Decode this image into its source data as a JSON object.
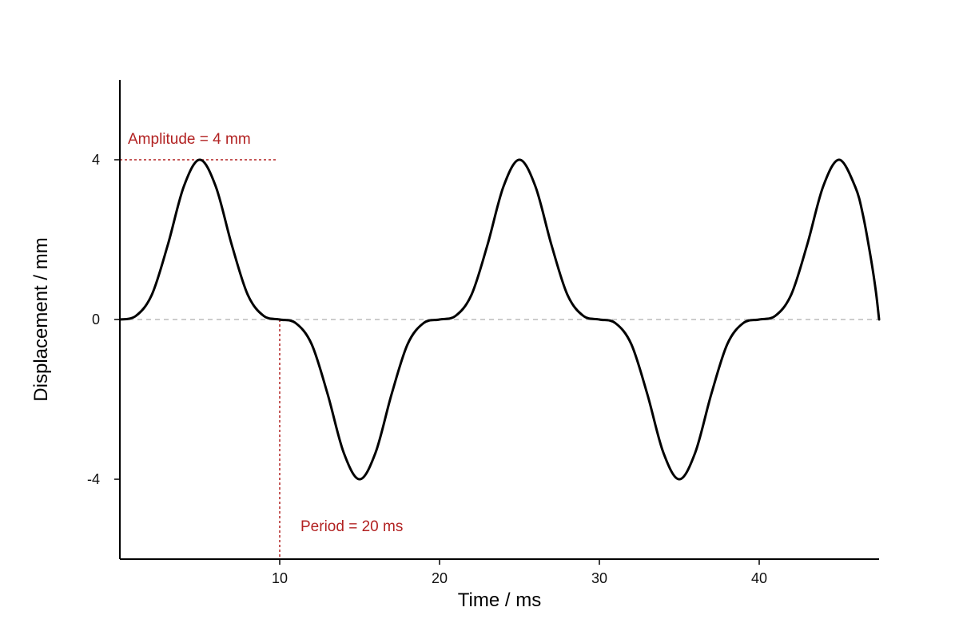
{
  "chart_data": {
    "type": "line",
    "title": "",
    "xlabel": "Time / ms",
    "ylabel": "Displacement / mm",
    "xlim": [
      0,
      47.5
    ],
    "ylim": [
      -6,
      6
    ],
    "x_ticks": [
      10,
      20,
      30,
      40
    ],
    "x_tick_labels": [
      "10",
      "20",
      "30",
      "40"
    ],
    "y_ticks": [
      -4,
      0,
      4
    ],
    "y_tick_labels": [
      "-4",
      "0",
      "4"
    ],
    "grid": false,
    "legend": "none",
    "series": [
      {
        "points": [
          [
            0,
            0
          ],
          [
            1,
            0.09
          ],
          [
            2,
            0.62
          ],
          [
            3,
            1.87
          ],
          [
            4,
            3.33
          ],
          [
            5,
            4.0
          ],
          [
            6,
            3.33
          ],
          [
            7,
            1.87
          ],
          [
            8,
            0.62
          ],
          [
            9,
            0.09
          ],
          [
            10,
            0
          ],
          [
            11,
            -0.09
          ],
          [
            12,
            -0.62
          ],
          [
            13,
            -1.87
          ],
          [
            14,
            -3.33
          ],
          [
            15,
            -4.0
          ],
          [
            16,
            -3.33
          ],
          [
            17,
            -1.87
          ],
          [
            18,
            -0.62
          ],
          [
            19,
            -0.09
          ],
          [
            20,
            0
          ],
          [
            21,
            0.09
          ],
          [
            22,
            0.62
          ],
          [
            23,
            1.87
          ],
          [
            24,
            3.33
          ],
          [
            25,
            4.0
          ],
          [
            26,
            3.33
          ],
          [
            27,
            1.87
          ],
          [
            28,
            0.62
          ],
          [
            29,
            0.09
          ],
          [
            30,
            0
          ],
          [
            31,
            -0.09
          ],
          [
            32,
            -0.62
          ],
          [
            33,
            -1.87
          ],
          [
            34,
            -3.33
          ],
          [
            35,
            -4.0
          ],
          [
            36,
            -3.33
          ],
          [
            37,
            -1.87
          ],
          [
            38,
            -0.62
          ],
          [
            39,
            -0.09
          ],
          [
            40,
            0
          ],
          [
            41,
            0.09
          ],
          [
            42,
            0.62
          ],
          [
            43,
            1.87
          ],
          [
            44,
            3.33
          ],
          [
            45,
            4.0
          ],
          [
            46,
            3.33
          ],
          [
            46.5,
            2.6
          ],
          [
            47,
            1.5
          ],
          [
            47.3,
            0.7
          ],
          [
            47.5,
            0
          ]
        ]
      }
    ],
    "reference_lines": {
      "zero_line_y": 0,
      "amplitude_y": 4,
      "amplitude_x_end": 9.8,
      "period_x": 10
    },
    "annotations": {
      "amplitude": {
        "text": "Amplitude = 4 mm",
        "x": 0.5,
        "y": 4.4
      },
      "period": {
        "text": "Period = 20 ms",
        "x": 11.3,
        "y": -5.3
      }
    },
    "colors": {
      "line": "#000000",
      "axis": "#000000",
      "annotation": "#b22222",
      "zero_line": "#bbbbbb"
    }
  }
}
